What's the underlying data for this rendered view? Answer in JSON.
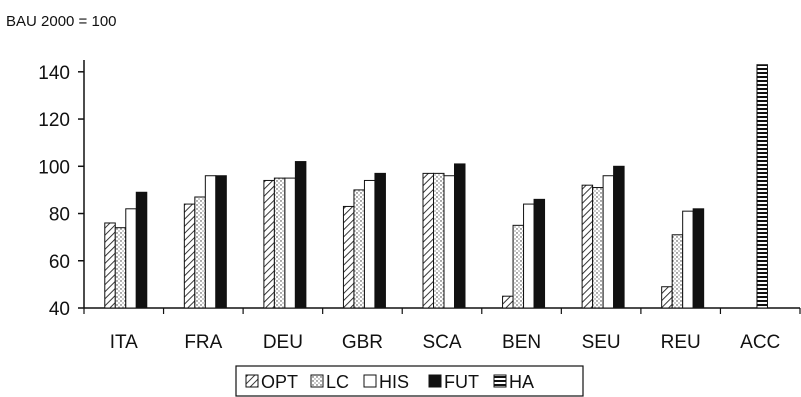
{
  "chart_data": {
    "type": "bar",
    "unit_label": "BAU 2000 = 100",
    "categories": [
      "ITA",
      "FRA",
      "DEU",
      "GBR",
      "SCA",
      "BEN",
      "SEU",
      "REU",
      "ACC"
    ],
    "ylim": [
      40,
      145
    ],
    "yticks": [
      40,
      60,
      80,
      100,
      120,
      140
    ],
    "grid": false,
    "legend_position": "bottom",
    "series": [
      {
        "name": "OPT",
        "pattern": "diagonal-hatch",
        "values": [
          76,
          84,
          94,
          83,
          97,
          45,
          92,
          49,
          null
        ]
      },
      {
        "name": "LC",
        "pattern": "dotted",
        "values": [
          74,
          87,
          95,
          90,
          97,
          75,
          91,
          71,
          null
        ]
      },
      {
        "name": "HIS",
        "pattern": "white",
        "values": [
          82,
          96,
          95,
          94,
          96,
          84,
          96,
          81,
          null
        ]
      },
      {
        "name": "FUT",
        "pattern": "solid-black",
        "values": [
          89,
          96,
          102,
          97,
          101,
          86,
          100,
          82,
          null
        ]
      },
      {
        "name": "HA",
        "pattern": "horizontal-lines",
        "values": [
          null,
          null,
          null,
          null,
          null,
          null,
          null,
          null,
          143
        ]
      }
    ],
    "colors": {
      "ink": "#111111",
      "background": "#ffffff"
    }
  }
}
